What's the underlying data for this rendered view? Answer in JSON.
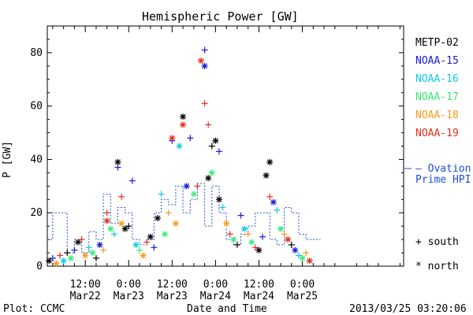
{
  "chart_data": {
    "type": "scatter",
    "title": "Hemispheric Power [GW]",
    "ylabel": "P [GW]",
    "xlabel": "Date and Time",
    "x_unit": "hours from 2013/03/21 00:00 UT",
    "xlim": [
      1.5,
      100
    ],
    "ylim": [
      0,
      90
    ],
    "yticks": [
      0,
      20,
      40,
      60,
      80
    ],
    "xticks": [
      {
        "x": 12,
        "time": "12:00",
        "date": "Mar22"
      },
      {
        "x": 24,
        "time": "0:00",
        "date": "Mar23"
      },
      {
        "x": 36,
        "time": "12:00",
        "date": "Mar23"
      },
      {
        "x": 48,
        "time": "0:00",
        "date": "Mar24"
      },
      {
        "x": 60,
        "time": "12:00",
        "date": "Mar24"
      },
      {
        "x": 72,
        "time": "0:00",
        "date": "Mar25"
      }
    ],
    "grid": false,
    "legend_position": "right",
    "series": [
      {
        "name": "METP-02",
        "color": "#000000"
      },
      {
        "name": "NOAA-15",
        "color": "#1a1ad8"
      },
      {
        "name": "NOAA-16",
        "color": "#12c8e6"
      },
      {
        "name": "NOAA-17",
        "color": "#3ae878"
      },
      {
        "name": "NOAA-18",
        "color": "#f79a1f"
      },
      {
        "name": "NOAA-19",
        "color": "#e0301e"
      }
    ],
    "ovation": {
      "label_line1": "— Ovation",
      "label_line2": "Prime HPI",
      "color": "#1e4fd8",
      "values": [
        [
          1.5,
          10
        ],
        [
          3,
          20
        ],
        [
          5,
          20
        ],
        [
          7,
          5
        ],
        [
          9,
          10
        ],
        [
          11,
          5
        ],
        [
          13,
          13
        ],
        [
          15,
          10
        ],
        [
          17,
          27
        ],
        [
          19,
          16
        ],
        [
          21,
          22
        ],
        [
          23,
          20
        ],
        [
          25,
          10
        ],
        [
          27,
          8
        ],
        [
          29,
          10
        ],
        [
          31,
          20
        ],
        [
          33,
          25
        ],
        [
          35,
          23
        ],
        [
          37,
          30
        ],
        [
          39,
          20
        ],
        [
          41,
          25
        ],
        [
          43,
          31
        ],
        [
          45,
          15
        ],
        [
          47,
          30
        ],
        [
          49,
          20
        ],
        [
          51,
          10
        ],
        [
          53,
          8
        ],
        [
          55,
          12
        ],
        [
          57,
          15
        ],
        [
          59,
          20
        ],
        [
          61,
          20
        ],
        [
          63,
          10
        ],
        [
          65,
          8
        ],
        [
          67,
          22
        ],
        [
          69,
          20
        ],
        [
          71,
          12
        ],
        [
          73,
          10
        ],
        [
          75,
          10
        ]
      ]
    },
    "symbols": {
      "south": "+",
      "north": "*"
    },
    "symbol_legend": {
      "south": "+ south",
      "north": "* north"
    },
    "points": [
      [
        2,
        2,
        "METP-02",
        "*"
      ],
      [
        3,
        3,
        "NOAA-15",
        "+"
      ],
      [
        4,
        1,
        "NOAA-18",
        "*"
      ],
      [
        5,
        4,
        "NOAA-19",
        "+"
      ],
      [
        6,
        2,
        "NOAA-16",
        "*"
      ],
      [
        7,
        5,
        "METP-02",
        "+"
      ],
      [
        8,
        3,
        "NOAA-17",
        "*"
      ],
      [
        9,
        6,
        "NOAA-15",
        "+"
      ],
      [
        10,
        9,
        "METP-02",
        "*"
      ],
      [
        11,
        10,
        "NOAA-19",
        "+"
      ],
      [
        12,
        4,
        "NOAA-18",
        "*"
      ],
      [
        13,
        7,
        "NOAA-16",
        "+"
      ],
      [
        14,
        5,
        "NOAA-17",
        "*"
      ],
      [
        15,
        3,
        "METP-02",
        "+"
      ],
      [
        16,
        8,
        "NOAA-15",
        "*"
      ],
      [
        17,
        6,
        "NOAA-18",
        "+"
      ],
      [
        18,
        17,
        "NOAA-19",
        "*"
      ],
      [
        18,
        20,
        "NOAA-19",
        "+"
      ],
      [
        19,
        14,
        "NOAA-17",
        "*"
      ],
      [
        20,
        12,
        "NOAA-16",
        "+"
      ],
      [
        21,
        37,
        "NOAA-15",
        "+"
      ],
      [
        21,
        39,
        "METP-02",
        "*"
      ],
      [
        22,
        16,
        "NOAA-18",
        "*"
      ],
      [
        22,
        26,
        "NOAA-19",
        "+"
      ],
      [
        23,
        14,
        "METP-02",
        "*"
      ],
      [
        24,
        15,
        "METP-02",
        "+"
      ],
      [
        25,
        32,
        "NOAA-15",
        "+"
      ],
      [
        26,
        8,
        "NOAA-16",
        "*"
      ],
      [
        27,
        6,
        "NOAA-17",
        "+"
      ],
      [
        28,
        4,
        "NOAA-18",
        "*"
      ],
      [
        29,
        9,
        "NOAA-19",
        "+"
      ],
      [
        30,
        11,
        "METP-02",
        "*"
      ],
      [
        31,
        7,
        "NOAA-15",
        "+"
      ],
      [
        32,
        18,
        "METP-02",
        "*"
      ],
      [
        33,
        27,
        "NOAA-16",
        "+"
      ],
      [
        34,
        12,
        "NOAA-17",
        "*"
      ],
      [
        35,
        20,
        "NOAA-18",
        "+"
      ],
      [
        36,
        47,
        "NOAA-15",
        "+"
      ],
      [
        36,
        48,
        "NOAA-19",
        "*"
      ],
      [
        37,
        16,
        "NOAA-18",
        "*"
      ],
      [
        38,
        45,
        "NOAA-16",
        "*"
      ],
      [
        39,
        56,
        "METP-02",
        "*"
      ],
      [
        39,
        53,
        "NOAA-19",
        "*"
      ],
      [
        40,
        30,
        "NOAA-15",
        "*"
      ],
      [
        41,
        48,
        "NOAA-15",
        "+"
      ],
      [
        42,
        27,
        "NOAA-17",
        "*"
      ],
      [
        43,
        30,
        "NOAA-19",
        "+"
      ],
      [
        44,
        77,
        "NOAA-19",
        "*"
      ],
      [
        45,
        75,
        "NOAA-15",
        "*"
      ],
      [
        45,
        81,
        "NOAA-15",
        "+"
      ],
      [
        45,
        61,
        "NOAA-19",
        "+"
      ],
      [
        46,
        33,
        "METP-02",
        "*"
      ],
      [
        46,
        53,
        "NOAA-19",
        "+"
      ],
      [
        47,
        35,
        "NOAA-17",
        "*"
      ],
      [
        47,
        45,
        "METP-02",
        "+"
      ],
      [
        48,
        47,
        "METP-02",
        "*"
      ],
      [
        49,
        43,
        "NOAA-15",
        "+"
      ],
      [
        49,
        25,
        "METP-02",
        "*"
      ],
      [
        50,
        22,
        "NOAA-16",
        "+"
      ],
      [
        51,
        16,
        "NOAA-18",
        "*"
      ],
      [
        52,
        12,
        "NOAA-19",
        "+"
      ],
      [
        53,
        10,
        "NOAA-17",
        "*"
      ],
      [
        54,
        8,
        "METP-02",
        "+"
      ],
      [
        55,
        19,
        "NOAA-15",
        "+"
      ],
      [
        56,
        14,
        "NOAA-16",
        "*"
      ],
      [
        57,
        12,
        "NOAA-18",
        "+"
      ],
      [
        58,
        9,
        "NOAA-17",
        "*"
      ],
      [
        59,
        7,
        "NOAA-19",
        "+"
      ],
      [
        60,
        6,
        "METP-02",
        "*"
      ],
      [
        61,
        11,
        "NOAA-15",
        "+"
      ],
      [
        62,
        34,
        "METP-02",
        "*"
      ],
      [
        63,
        39,
        "METP-02",
        "*"
      ],
      [
        63,
        26,
        "NOAA-19",
        "+"
      ],
      [
        64,
        24,
        "NOAA-15",
        "*"
      ],
      [
        65,
        21,
        "NOAA-16",
        "+"
      ],
      [
        66,
        14,
        "NOAA-17",
        "*"
      ],
      [
        67,
        12,
        "NOAA-18",
        "+"
      ],
      [
        68,
        10,
        "NOAA-19",
        "*"
      ],
      [
        69,
        8,
        "METP-02",
        "+"
      ],
      [
        70,
        6,
        "NOAA-15",
        "*"
      ],
      [
        71,
        4,
        "NOAA-16",
        "+"
      ],
      [
        72,
        3,
        "NOAA-17",
        "*"
      ],
      [
        73,
        5,
        "NOAA-18",
        "+"
      ],
      [
        74,
        2,
        "NOAA-19",
        "*"
      ]
    ]
  },
  "footer": {
    "plot_credit": "Plot: CCMC",
    "timestamp": "2013/03/25 03:20:06"
  }
}
